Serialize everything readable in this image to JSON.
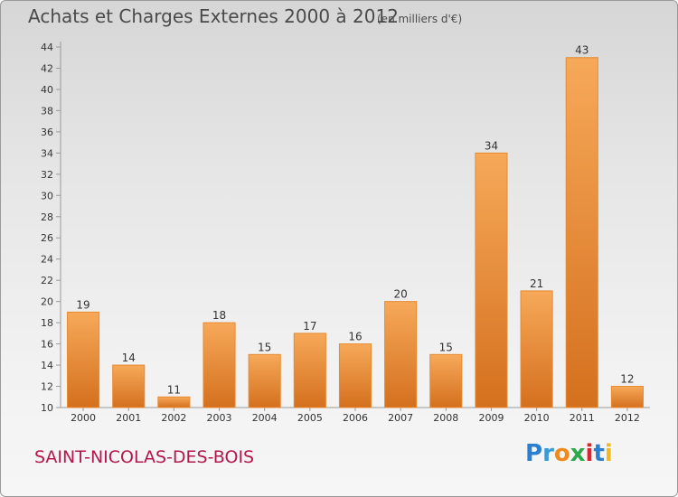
{
  "header": {
    "title": "Achats et Charges Externes 2000 à 2012",
    "subtitle": "(en milliers d'€)"
  },
  "footer": {
    "commune": "SAINT-NICOLAS-DES-BOIS",
    "logo_text": "Proxiti",
    "logo_letters": [
      {
        "char": "P",
        "color": "#2b7fd0"
      },
      {
        "char": "r",
        "color": "#3a9ad9"
      },
      {
        "char": "o",
        "color": "#f08a1c"
      },
      {
        "char": "x",
        "color": "#2fa84a"
      },
      {
        "char": "i",
        "color": "#d9262e"
      },
      {
        "char": "t",
        "color": "#2b7fd0"
      },
      {
        "char": "i",
        "color": "#f2b81e"
      }
    ]
  },
  "colors": {
    "bar_top": "#f6a959",
    "bar_bottom": "#d4701e",
    "bar_stroke": "#e88a30",
    "axis": "#9a9a9a",
    "text": "#333333"
  },
  "chart_data": {
    "type": "bar",
    "categories": [
      "2000",
      "2001",
      "2002",
      "2003",
      "2004",
      "2005",
      "2006",
      "2007",
      "2008",
      "2009",
      "2010",
      "2011",
      "2012"
    ],
    "values": [
      19,
      14,
      11,
      18,
      15,
      17,
      16,
      20,
      15,
      34,
      21,
      43,
      12
    ],
    "title": "Achats et Charges Externes 2000 à 2012",
    "ylim": [
      10,
      44
    ],
    "yticks": [
      10,
      12,
      14,
      16,
      18,
      20,
      22,
      24,
      26,
      28,
      30,
      32,
      34,
      36,
      38,
      40,
      42,
      44
    ],
    "grid": false,
    "data_labels": true
  }
}
